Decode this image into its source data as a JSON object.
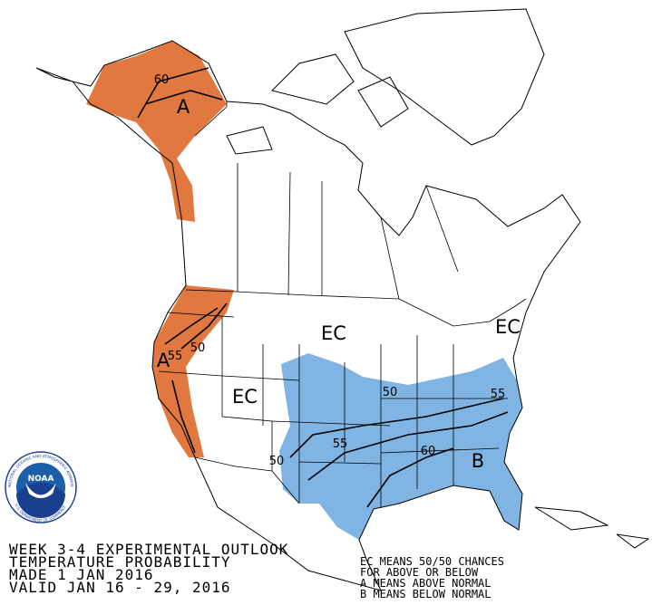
{
  "title_block": {
    "lines": [
      "WEEK 3-4 EXPERIMENTAL OUTLOOK",
      "TEMPERATURE PROBABILITY",
      "MADE  1 JAN 2016",
      "VALID  JAN 16 - 29, 2016"
    ]
  },
  "legend": {
    "lines": [
      "EC MEANS 50/50 CHANCES",
      "FOR ABOVE OR BELOW",
      "A MEANS ABOVE NORMAL",
      "B MEANS BELOW NORMAL"
    ]
  },
  "logo": {
    "name": "NOAA",
    "ring_top": "NATIONAL OCEANIC AND ATMOSPHERIC ADMINISTRATION",
    "ring_bottom": "U.S. DEPARTMENT OF COMMERCE"
  },
  "map_labels": {
    "alaska_category": "A",
    "alaska_contour": 60,
    "west_category": "A",
    "west_contour_a": 50,
    "west_contour_b": 55,
    "ec_north": "EC",
    "ec_east": "EC",
    "ec_west": "EC",
    "south_category": "B",
    "south_contour_a": 50,
    "south_contour_b": 55,
    "south_contour_c": 55,
    "south_contour_d": 60,
    "south_contour_e": 50
  }
}
